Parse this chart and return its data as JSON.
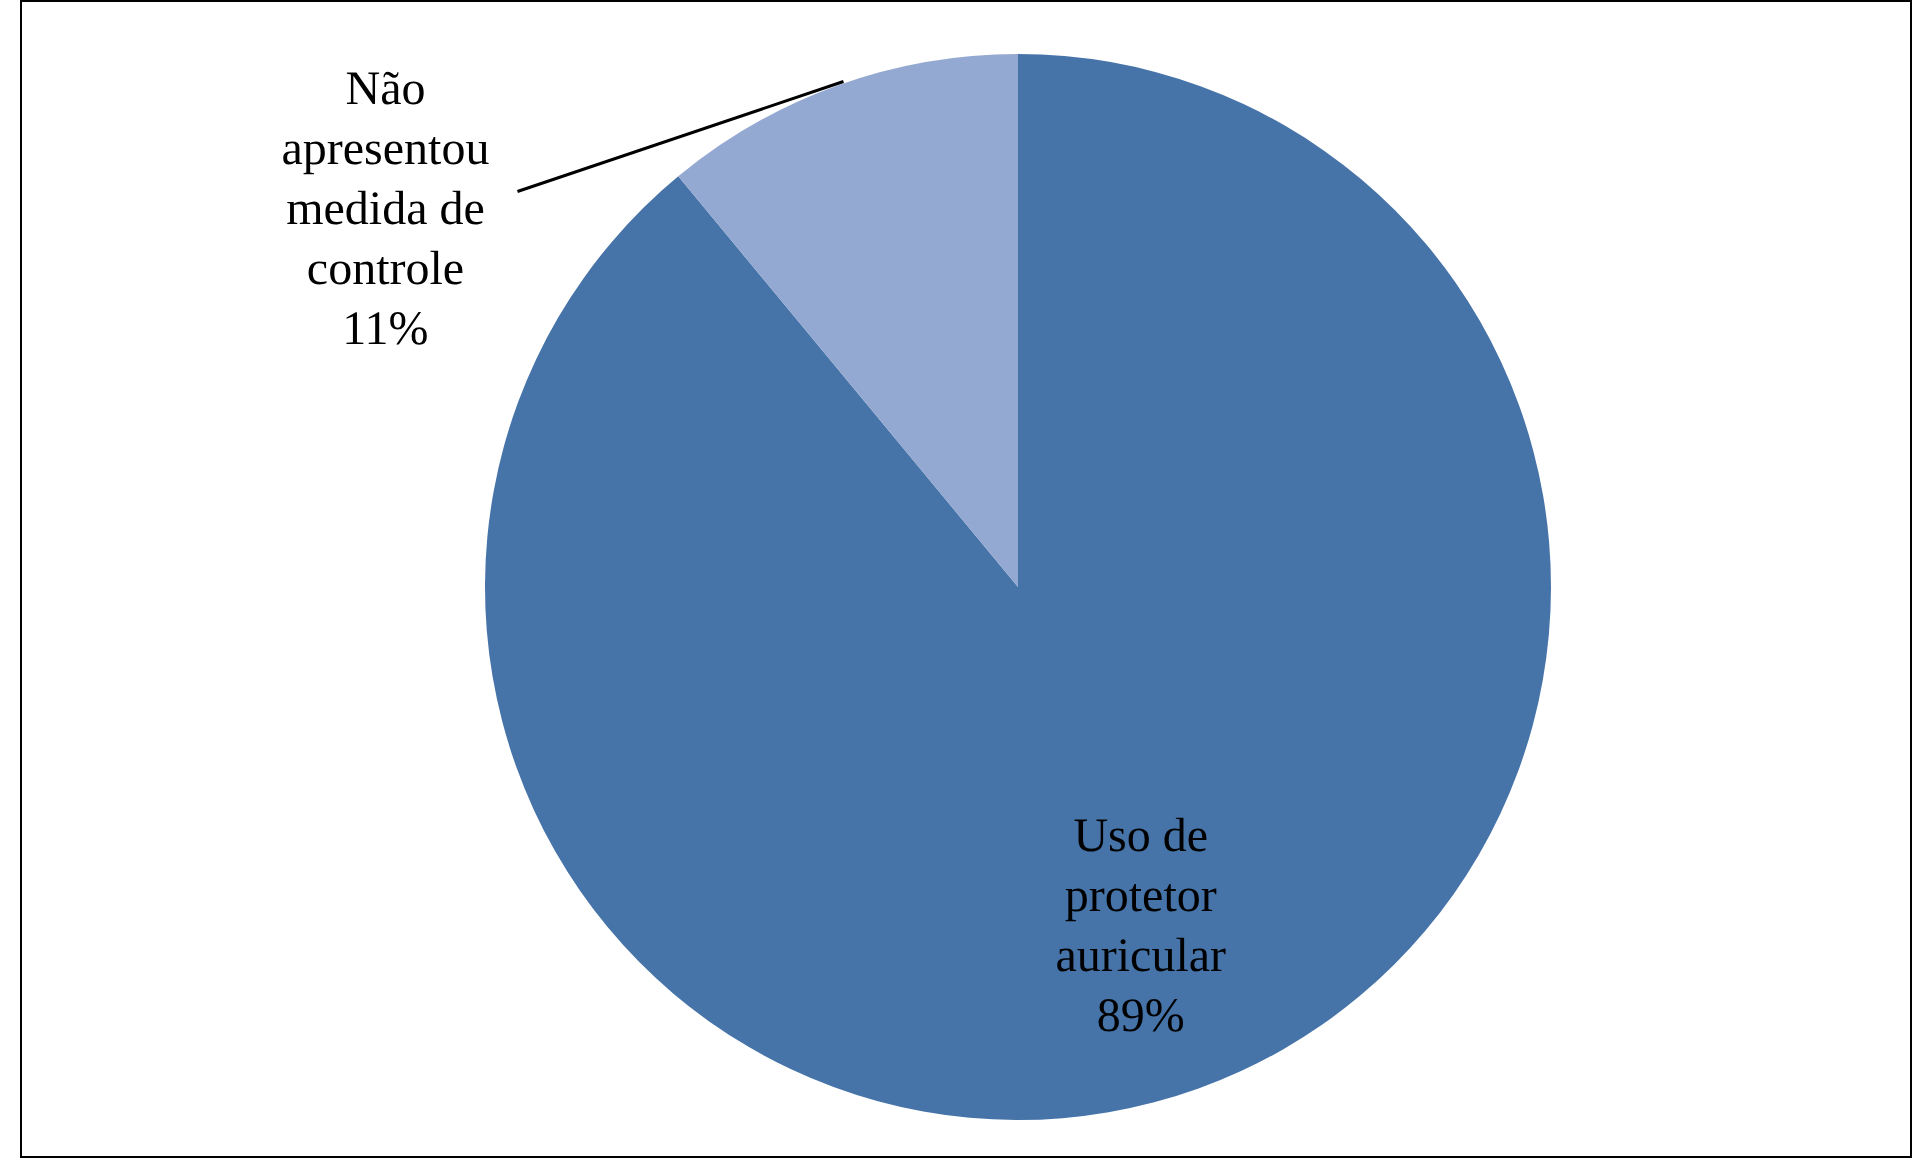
{
  "chart_data": {
    "type": "pie",
    "categories": [
      "Uso de protetor auricular",
      "Não apresentou medida de controle"
    ],
    "values": [
      89,
      11
    ],
    "colors": [
      "#4674a9",
      "#94a9d1"
    ],
    "value_labels": [
      "89%",
      "11%"
    ],
    "legend": false
  }
}
